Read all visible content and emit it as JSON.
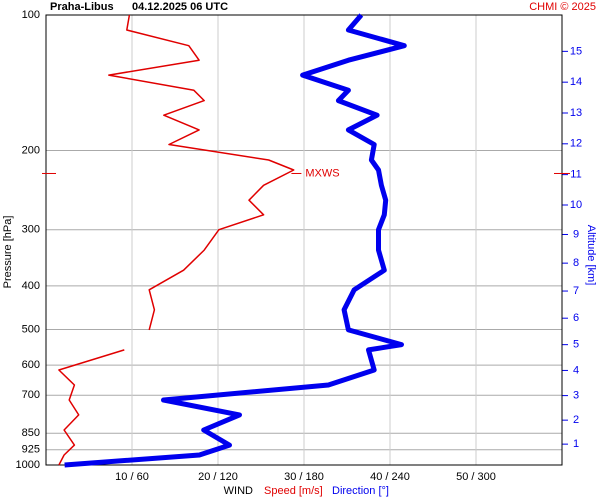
{
  "chart_data": {
    "type": "wind-profile",
    "station": "Praha-Libus",
    "time": "04.12.2025 06 UTC",
    "credit": "CHMI © 2025",
    "ylabel": "Pressure [hPa]",
    "y2label": "Altitude [km]",
    "xlabel": "WIND",
    "xlabel_speed": "Speed [m/s]",
    "xlabel_direction": "Direction [°]",
    "y_scale": "log",
    "ylim": [
      100,
      1000
    ],
    "yticks": [
      100,
      200,
      300,
      400,
      500,
      600,
      700,
      850,
      925,
      1000
    ],
    "xlim": [
      0,
      60
    ],
    "x2lim": [
      0,
      360
    ],
    "xticks": [
      {
        "value": 10,
        "label": "10 / 60"
      },
      {
        "value": 20,
        "label": "20 / 120"
      },
      {
        "value": 30,
        "label": "30 / 180"
      },
      {
        "value": 40,
        "label": "40 / 240"
      },
      {
        "value": 50,
        "label": "50 / 300"
      }
    ],
    "y2ticks": [
      1,
      2,
      3,
      4,
      5,
      6,
      7,
      8,
      9,
      10,
      11,
      12,
      13,
      14,
      15
    ],
    "grid": true,
    "pressure": [
      100,
      108,
      117,
      126,
      136,
      147,
      155,
      167,
      180,
      194,
      210,
      221,
      239,
      258,
      278,
      300,
      333,
      369,
      408,
      452,
      501,
      540,
      555,
      615,
      664,
      717,
      774,
      836,
      903,
      950,
      1000
    ],
    "series": [
      {
        "name": "Speed [m/s]",
        "color": "#e00000",
        "width": 1.5,
        "axis": "x",
        "values": [
          9.7,
          9.4,
          16.6,
          17.8,
          7.3,
          17.2,
          18.4,
          13.7,
          17.8,
          14.3,
          25.9,
          28.8,
          25.3,
          23.6,
          25.3,
          20.1,
          18.4,
          16.0,
          12.0,
          12.6,
          12.0,
          null,
          9.1,
          1.5,
          3.3,
          2.7,
          3.8,
          2.1,
          3.3,
          2.1,
          1.5
        ]
      },
      {
        "name": "Direction [°]",
        "color": "#0000ee",
        "width": 5,
        "axis": "x2",
        "values": [
          220,
          211,
          250,
          211,
          179,
          211,
          204,
          231,
          211,
          229,
          227,
          232,
          234,
          237,
          236,
          232,
          232,
          236,
          215,
          208,
          211,
          248,
          225,
          229,
          197,
          82,
          135,
          110,
          128,
          107,
          13
        ]
      }
    ],
    "max_wind": {
      "label": "MXWS",
      "pressure": 225,
      "speed": 29
    }
  }
}
